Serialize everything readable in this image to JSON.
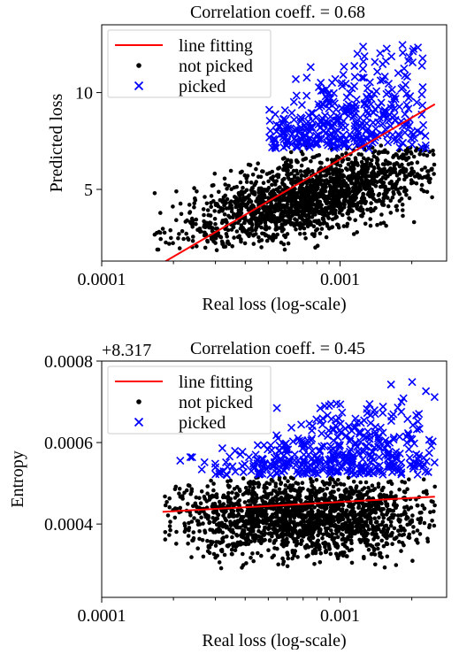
{
  "chart_data": [
    {
      "type": "scatter",
      "title": "Correlation coeff. = 0.68",
      "xlabel": "Real loss (log-scale)",
      "ylabel": "Predicted loss",
      "x_scale": "log",
      "xlim": [
        0.0001,
        0.0028
      ],
      "ylim": [
        1.3,
        13.5
      ],
      "x_ticks": [
        {
          "value": 0.0001,
          "label": "0.0001"
        },
        {
          "value": 0.001,
          "label": "0.001"
        }
      ],
      "y_ticks": [
        {
          "value": 5,
          "label": "5"
        },
        {
          "value": 10,
          "label": "10"
        }
      ],
      "offset_text": "",
      "legend": {
        "position": "top-left",
        "entries": [
          "line fitting",
          "not picked",
          "picked"
        ]
      },
      "series": [
        {
          "name": "line fitting",
          "marker": "line",
          "color": "#ff0000",
          "x": [
            0.00018,
            0.0025
          ],
          "y": [
            1.2,
            9.4
          ]
        },
        {
          "name": "not picked",
          "marker": "dot",
          "color": "#000000",
          "count": 1800,
          "x_range": [
            0.00016,
            0.0025
          ],
          "y_range": [
            1.8,
            7.3
          ],
          "x_center": 0.00075,
          "y_center": 5.4
        },
        {
          "name": "picked",
          "marker": "x",
          "color": "#0000ff",
          "count": 380,
          "x_range": [
            0.0005,
            0.0023
          ],
          "y_range": [
            7.1,
            12.7
          ],
          "x_center": 0.0011,
          "y_center": 8.3
        }
      ]
    },
    {
      "type": "scatter",
      "title": "Correlation coeff. = 0.45",
      "xlabel": "Real loss (log-scale)",
      "ylabel": "Entropy",
      "x_scale": "log",
      "xlim": [
        0.0001,
        0.0028
      ],
      "ylim": [
        0.00022,
        0.0008
      ],
      "x_ticks": [
        {
          "value": 0.0001,
          "label": "0.0001"
        },
        {
          "value": 0.001,
          "label": "0.001"
        }
      ],
      "y_ticks": [
        {
          "value": 0.0004,
          "label": "0.0004"
        },
        {
          "value": 0.0006,
          "label": "0.0006"
        },
        {
          "value": 0.0008,
          "label": "0.0008"
        }
      ],
      "offset_text": "+8.317",
      "legend": {
        "position": "top-left",
        "entries": [
          "line fitting",
          "not picked",
          "picked"
        ]
      },
      "series": [
        {
          "name": "line fitting",
          "marker": "line",
          "color": "#ff0000",
          "x": [
            0.00018,
            0.0025
          ],
          "y": [
            0.00043,
            0.000467
          ]
        },
        {
          "name": "not picked",
          "marker": "dot",
          "color": "#000000",
          "count": 1800,
          "x_range": [
            0.00018,
            0.0025
          ],
          "y_range": [
            0.00028,
            0.000515
          ],
          "x_center": 0.0007,
          "y_center": 0.00042
        },
        {
          "name": "picked",
          "marker": "x",
          "color": "#0000ff",
          "count": 420,
          "x_range": [
            0.00018,
            0.0025
          ],
          "y_range": [
            0.00052,
            0.00075
          ],
          "x_center": 0.001,
          "y_center": 0.00057
        }
      ]
    }
  ]
}
